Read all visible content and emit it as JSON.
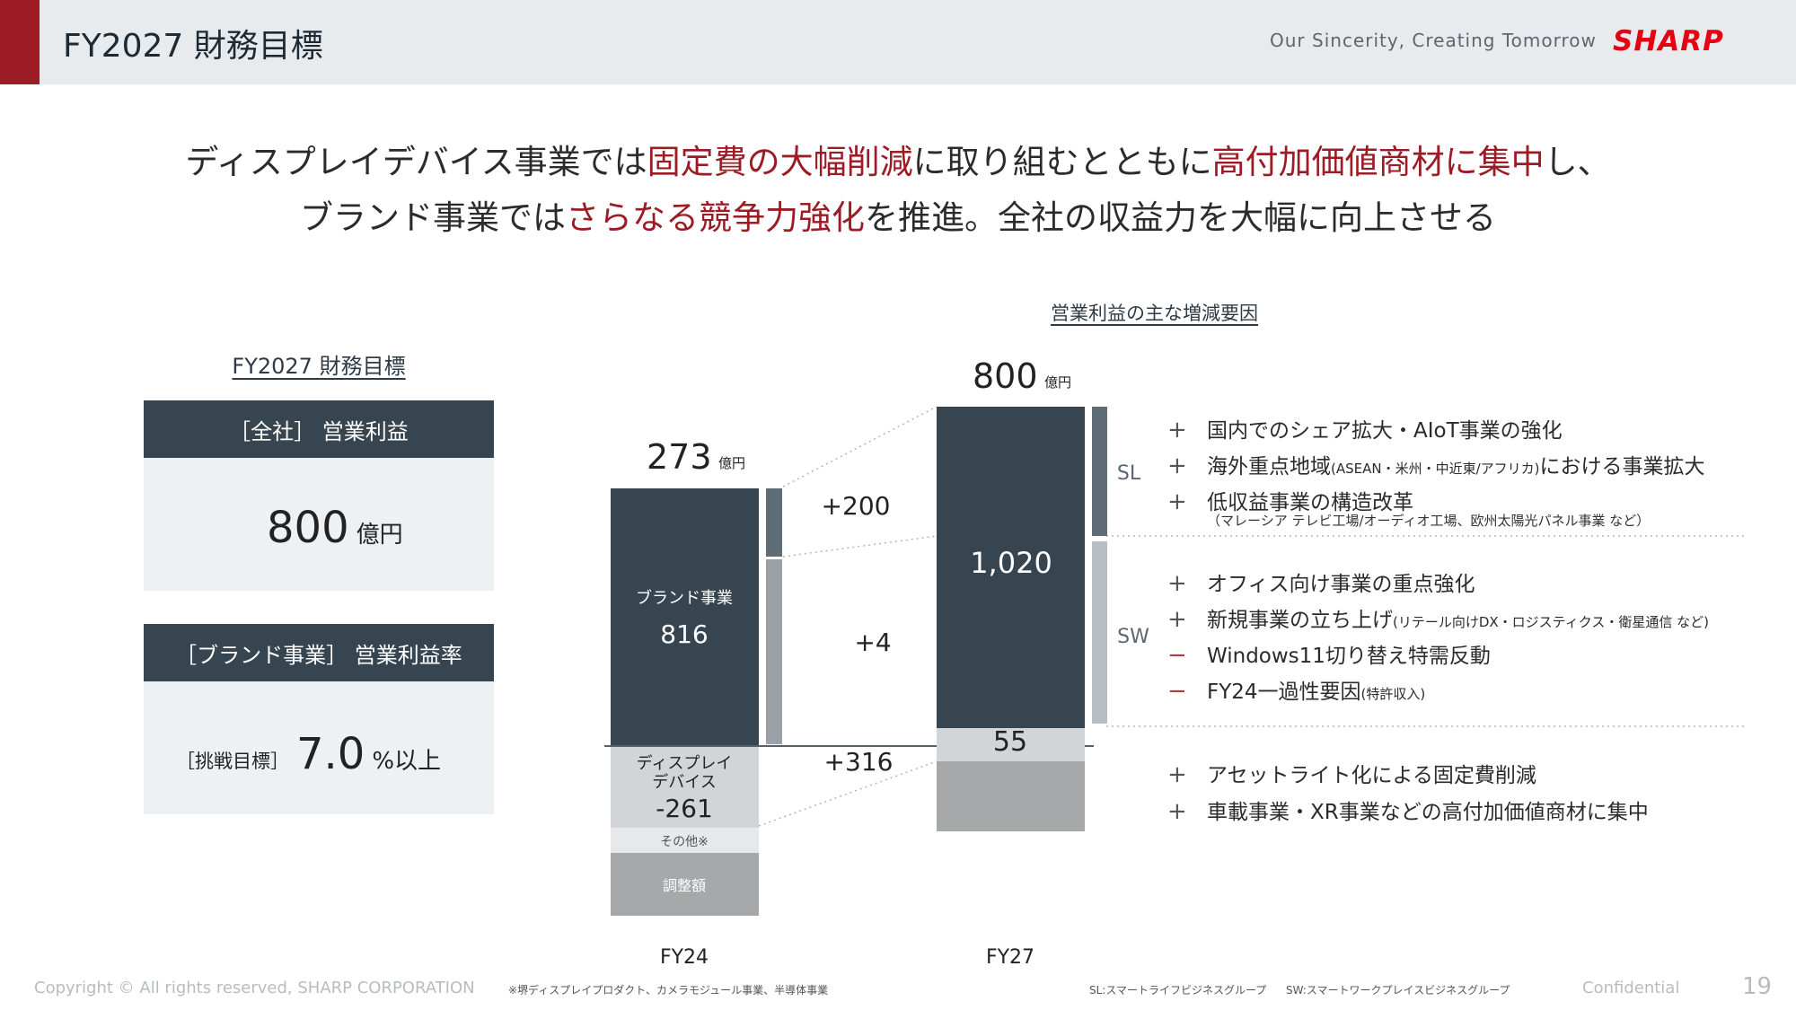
{
  "header": {
    "title": "FY2027 財務目標",
    "tagline": "Our Sincerity, Creating Tomorrow",
    "logo": "SHARP",
    "accent_color": "#9b1c24",
    "logo_color": "#e60012"
  },
  "headline": {
    "line1": [
      {
        "text": "ディスプレイデバイス事業では",
        "hl": false
      },
      {
        "text": "固定費の大幅削減",
        "hl": true
      },
      {
        "text": "に取り組むとともに",
        "hl": false
      },
      {
        "text": "高付加価値商材に集中",
        "hl": true
      },
      {
        "text": "し、",
        "hl": false
      }
    ],
    "line2": [
      {
        "text": "ブランド事業では",
        "hl": false
      },
      {
        "text": "さらなる競争力強化",
        "hl": true
      },
      {
        "text": "を推進。全社の収益力を大幅に向上させる",
        "hl": false
      }
    ]
  },
  "left_panel": {
    "title": "FY2027 財務目標",
    "card1": {
      "header": "［全社］ 営業利益",
      "value": "800",
      "unit": "億円"
    },
    "card2": {
      "header": "［ブランド事業］ 営業利益率",
      "label": "［挑戦目標］",
      "value": "7.0",
      "unit": "%以上"
    }
  },
  "chart_data": {
    "type": "bar",
    "title": "営業利益の主な増減要因",
    "unit": "億円",
    "categories": [
      "FY24",
      "FY27"
    ],
    "totals": [
      273,
      800
    ],
    "series": [
      {
        "name": "ブランド事業",
        "values": [
          816,
          1020
        ]
      },
      {
        "name": "ディスプレイデバイス",
        "values": [
          -261,
          55
        ]
      },
      {
        "name": "その他※",
        "values": [
          null,
          null
        ]
      },
      {
        "name": "調整額",
        "values": [
          null,
          null
        ]
      }
    ],
    "bar_labels": {
      "fy24_brand_name": "ブランド事業",
      "fy24_brand_value": "816",
      "fy24_display_name": "ディスプレイ\nデバイス",
      "fy24_display_value": "-261",
      "fy24_other": "その他※",
      "fy24_adjust": "調整額",
      "fy27_brand_value": "1,020",
      "fy27_display_value": "55"
    },
    "deltas": [
      {
        "label": "+200",
        "segment": "SL",
        "value": 200
      },
      {
        "label": "+4",
        "segment": "SW",
        "value": 4
      },
      {
        "label": "+316",
        "segment": "ディスプレイデバイス",
        "value": 316
      }
    ],
    "segment_labels": [
      "SL",
      "SW"
    ]
  },
  "factors": {
    "sl": [
      {
        "sign": "+",
        "text": "国内でのシェア拡大・AIoT事業の強化"
      },
      {
        "sign": "+",
        "text": "海外重点地域",
        "small": "(ASEAN・米州・中近東/アフリカ)",
        "text2": "における事業拡大"
      },
      {
        "sign": "+",
        "text": "低収益事業の構造改革",
        "sub": "（マレーシア テレビ工場/オーディオ工場、欧州太陽光パネル事業 など）"
      }
    ],
    "sw": [
      {
        "sign": "+",
        "text": "オフィス向け事業の重点強化"
      },
      {
        "sign": "+",
        "text": "新規事業の立ち上げ",
        "small": "(リテール向けDX・ロジスティクス・衛星通信 など)"
      },
      {
        "sign": "−",
        "text": "Windows11切り替え特需反動"
      },
      {
        "sign": "−",
        "text": "FY24一過性要因",
        "small": "(特許収入)"
      }
    ],
    "dd": [
      {
        "sign": "+",
        "text": "アセットライト化による固定費削減"
      },
      {
        "sign": "+",
        "text": "車載事業・XR事業などの高付加価値商材に集中"
      }
    ]
  },
  "footer": {
    "copyright": "Copyright © All rights reserved, SHARP CORPORATION",
    "note": "※堺ディスプレイプロダクト、カメラモジュール事業、半導体事業",
    "sl_legend": "SL:スマートライフビジネスグループ",
    "sw_legend": "SW:スマートワークプレイスビジネスグループ",
    "confidential": "Confidential",
    "page": "19"
  }
}
